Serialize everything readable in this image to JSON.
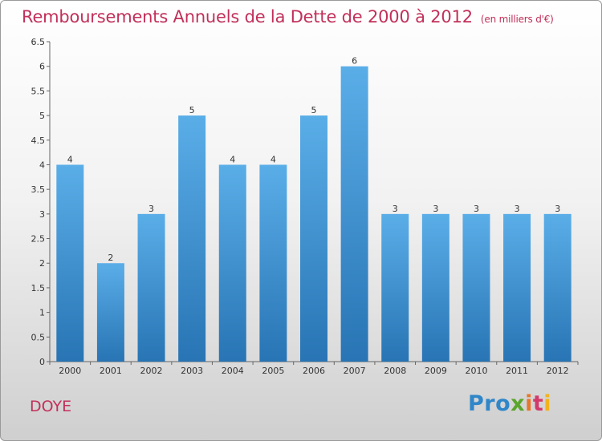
{
  "title": "Remboursements Annuels de la Dette de 2000 à 2012",
  "unit": "(en milliers d'€)",
  "commune": "DOYE",
  "logo": {
    "p1": "Pro",
    "p2": "x",
    "p3": "i",
    "p4": "t",
    "p5": "i"
  },
  "colors": {
    "title": "#c2305a",
    "bar_top": "#5aaee8",
    "bar_bottom": "#2874b4"
  },
  "chart_data": {
    "type": "bar",
    "categories": [
      "2000",
      "2001",
      "2002",
      "2003",
      "2004",
      "2005",
      "2006",
      "2007",
      "2008",
      "2009",
      "2010",
      "2011",
      "2012"
    ],
    "values": [
      4,
      2,
      3,
      5,
      4,
      4,
      5,
      6,
      3,
      3,
      3,
      3,
      3
    ],
    "ylim": [
      0,
      6.5
    ],
    "yticks": [
      "0",
      "0.5",
      "1",
      "1.5",
      "2",
      "2.5",
      "3",
      "3.5",
      "4",
      "4.5",
      "5",
      "5.5",
      "6",
      "6.5"
    ],
    "grid": false
  }
}
